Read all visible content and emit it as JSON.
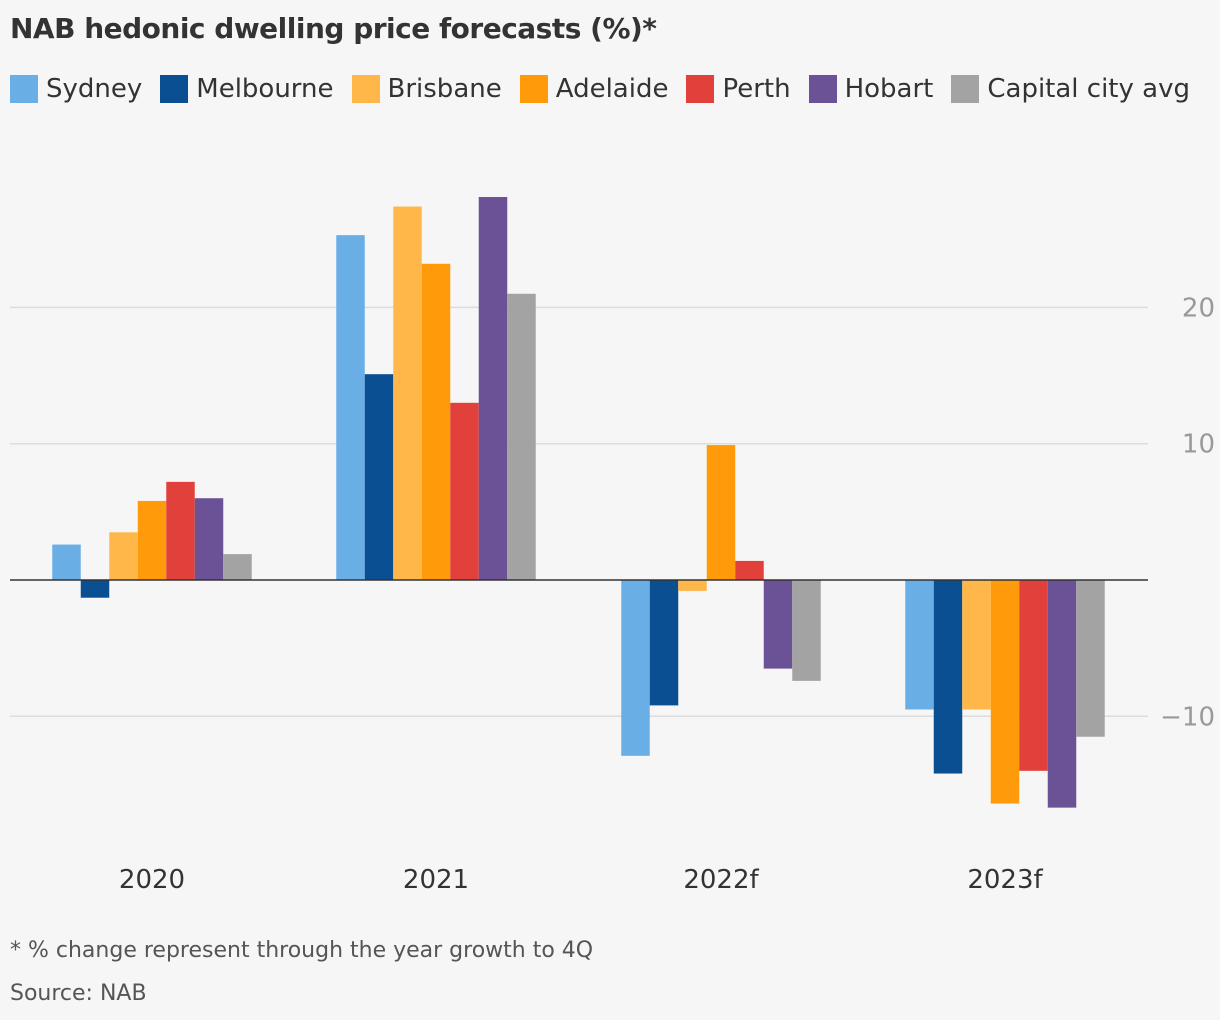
{
  "chart_data": {
    "type": "bar",
    "title": "NAB hedonic dwelling price forecasts (%)*",
    "categories": [
      "2020",
      "2021",
      "2022f",
      "2023f"
    ],
    "series": [
      {
        "name": "Sydney",
        "color": "#6aaee6",
        "values": [
          2.6,
          25.3,
          -12.9,
          -9.5
        ]
      },
      {
        "name": "Melbourne",
        "color": "#0a4f92",
        "values": [
          -1.3,
          15.1,
          -9.2,
          -14.2
        ]
      },
      {
        "name": "Brisbane",
        "color": "#ffb74a",
        "values": [
          3.5,
          27.4,
          -0.8,
          -9.5
        ]
      },
      {
        "name": "Adelaide",
        "color": "#ff9b0b",
        "values": [
          5.8,
          23.2,
          9.9,
          -16.4
        ]
      },
      {
        "name": "Perth",
        "color": "#e2403a",
        "values": [
          7.2,
          13.0,
          1.4,
          -14.0
        ]
      },
      {
        "name": "Hobart",
        "color": "#6b5195",
        "values": [
          6.0,
          28.1,
          -6.5,
          -16.7
        ]
      },
      {
        "name": "Capital city avg",
        "color": "#a3a3a3",
        "values": [
          1.9,
          21.0,
          -7.4,
          -11.5
        ]
      }
    ],
    "yticks": [
      20,
      10,
      -10
    ],
    "ytick_labels": [
      "20",
      "10",
      "−10"
    ],
    "ylim": [
      -19,
      33
    ],
    "grid": true,
    "legend": "top",
    "xlabel": "",
    "ylabel": ""
  },
  "footnote": "* % change represent through the year growth to 4Q",
  "source": "Source: NAB"
}
